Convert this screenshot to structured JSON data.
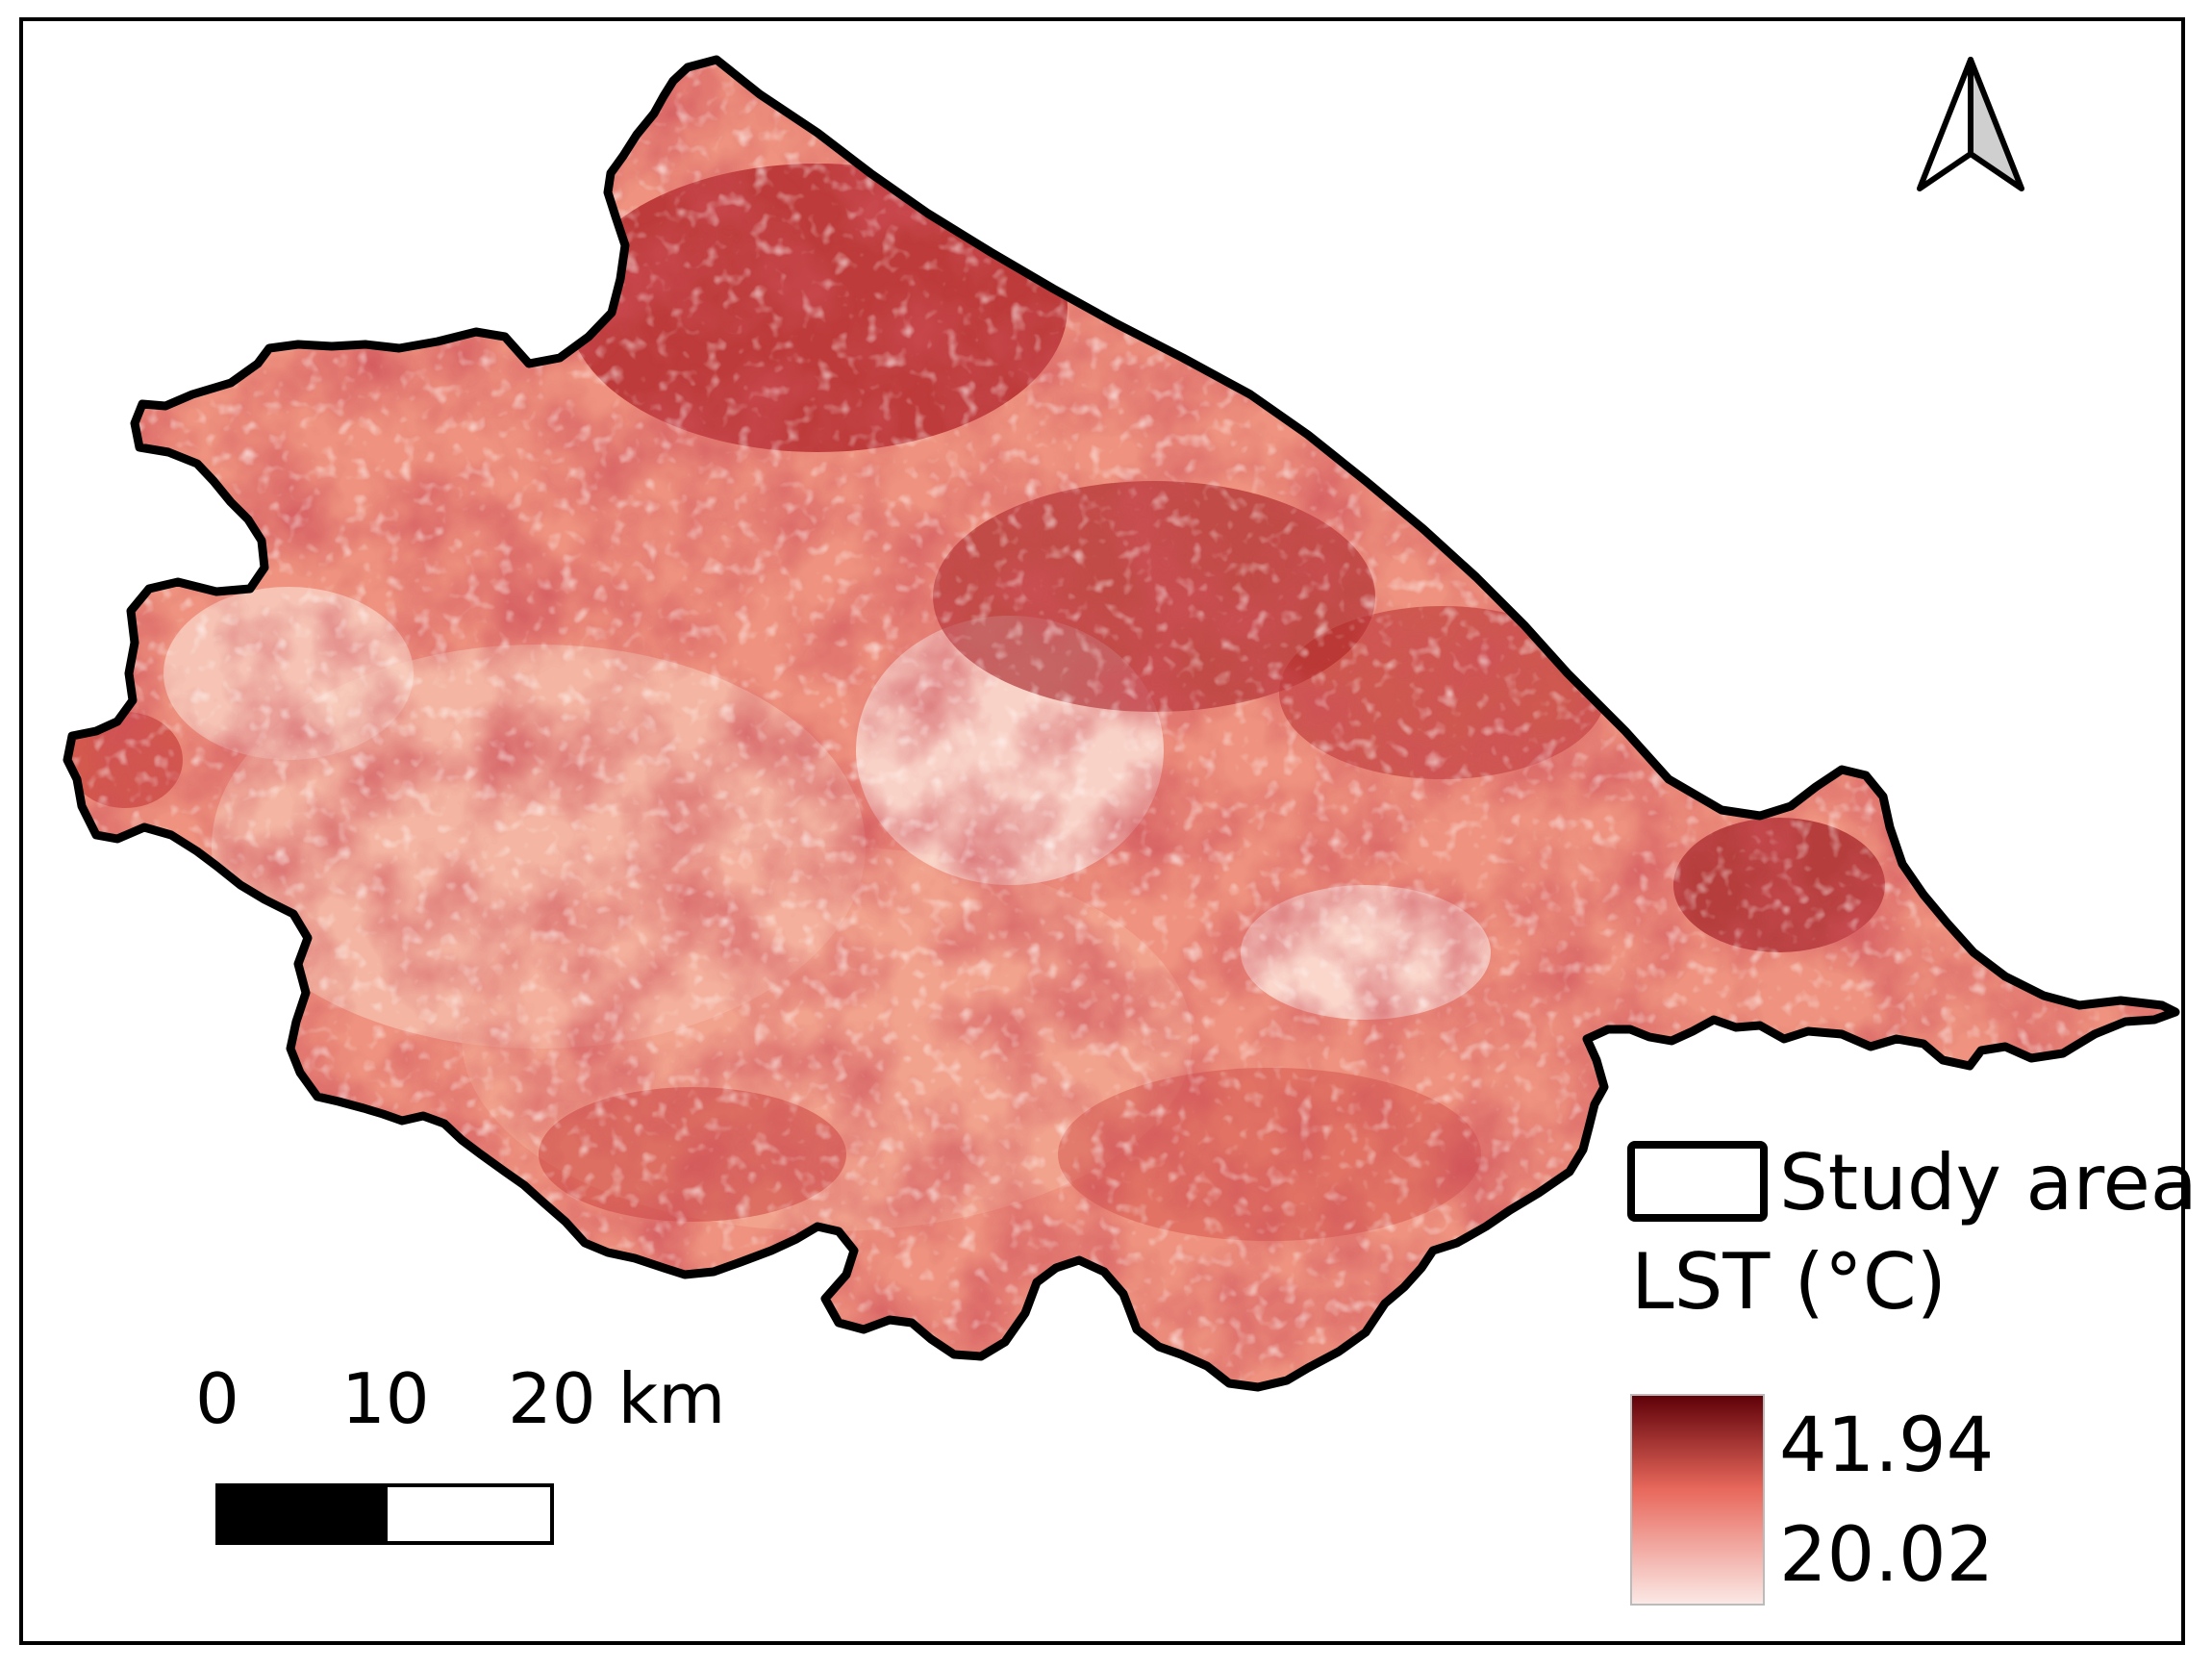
{
  "map": {
    "theme": "land surface temperature",
    "region_shading": {
      "low_color": "#fce6dc",
      "mid_color": "#ef8a72",
      "high_color": "#7d0b12"
    },
    "boundary_color": "#000000"
  },
  "north_arrow": {
    "icon": "north-arrow-icon"
  },
  "scale_bar": {
    "labels": [
      "0",
      "10",
      "20 km"
    ],
    "segment_colors": [
      "#000000",
      "#ffffff"
    ]
  },
  "legend": {
    "study_area_label": "Study area",
    "lst_title": "LST (°C)",
    "max_value": "41.94",
    "min_value": "20.02",
    "ramp_colors": [
      "#5e0008",
      "#e8685c",
      "#fbe9e6"
    ]
  }
}
